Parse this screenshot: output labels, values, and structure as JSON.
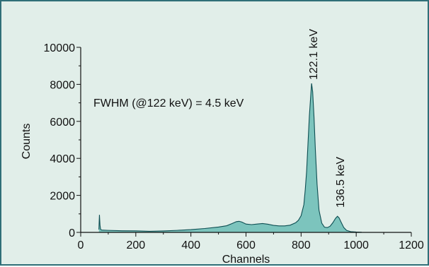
{
  "chart_data": {
    "type": "area",
    "xlabel": "Channels",
    "ylabel": "Counts",
    "xlim": [
      0,
      1200
    ],
    "ylim": [
      0,
      10000
    ],
    "x_ticks": [
      0,
      200,
      400,
      600,
      800,
      1000,
      1200
    ],
    "y_ticks": [
      0,
      2000,
      4000,
      6000,
      8000,
      10000
    ],
    "grid": false,
    "series": [
      {
        "x": [
          66,
          68,
          70,
          72,
          75,
          80,
          100,
          150,
          200,
          250,
          300,
          350,
          400,
          450,
          500,
          530,
          550,
          565,
          575,
          585,
          600,
          620,
          640,
          660,
          680,
          700,
          720,
          740,
          760,
          780,
          790,
          800,
          810,
          815,
          820,
          825,
          830,
          835,
          838,
          842,
          847,
          852,
          858,
          865,
          875,
          885,
          895,
          905,
          915,
          925,
          932,
          938,
          945,
          955,
          965,
          980,
          1000,
          1020
        ],
        "y": [
          150,
          950,
          400,
          180,
          130,
          120,
          110,
          90,
          85,
          60,
          80,
          110,
          150,
          210,
          290,
          360,
          480,
          580,
          600,
          560,
          450,
          420,
          450,
          480,
          440,
          380,
          350,
          350,
          390,
          520,
          650,
          900,
          1500,
          2300,
          3300,
          4800,
          6300,
          7400,
          8050,
          7600,
          6200,
          4400,
          2600,
          1200,
          500,
          280,
          260,
          330,
          520,
          760,
          870,
          780,
          560,
          260,
          110,
          40,
          20,
          10
        ]
      }
    ],
    "annotations": {
      "fwhm": "FWHM (@122 keV) = 4.5 keV",
      "peak1": "122.1 keV",
      "peak2": "136.5 keV"
    },
    "colors": {
      "fill": "#7cc4bd",
      "line": "#0d4e52",
      "background": "#e1eee9",
      "border": "#2f6f78",
      "axis": "#111111"
    }
  }
}
